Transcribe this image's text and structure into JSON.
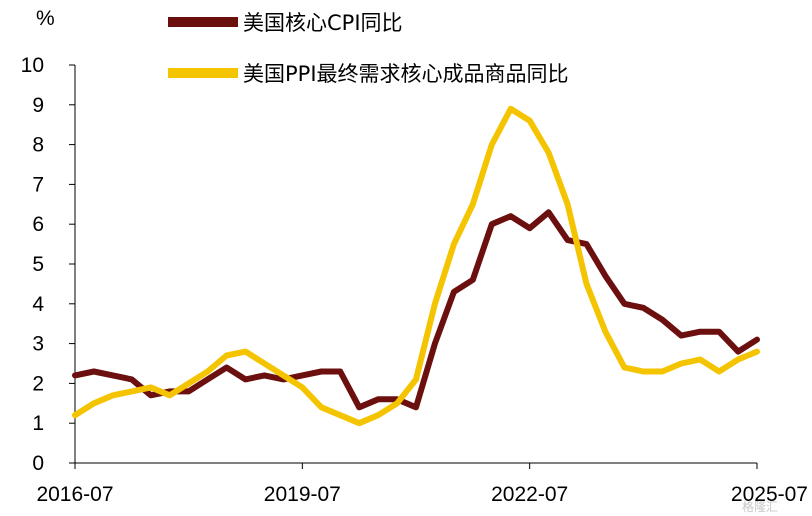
{
  "chart_data": {
    "type": "line",
    "title": "",
    "xlabel": "",
    "ylabel": "%",
    "ylim": [
      0,
      10
    ],
    "yticks": [
      "0",
      "1",
      "2",
      "3",
      "4",
      "5",
      "6",
      "7",
      "8",
      "9",
      "10"
    ],
    "xticks": [
      "2016-07",
      "2019-07",
      "2022-07",
      "2025-07"
    ],
    "x_start": "2016-07",
    "x_end": "2025-07",
    "legend_position": "top",
    "grid": false,
    "watermark": "格隆汇",
    "series": [
      {
        "name": "美国核心CPI同比",
        "color": "#6b0f0f",
        "points": [
          [
            "2016-07",
            2.2
          ],
          [
            "2016-10",
            2.3
          ],
          [
            "2017-01",
            2.2
          ],
          [
            "2017-04",
            2.1
          ],
          [
            "2017-07",
            1.7
          ],
          [
            "2017-10",
            1.8
          ],
          [
            "2018-01",
            1.8
          ],
          [
            "2018-04",
            2.1
          ],
          [
            "2018-07",
            2.4
          ],
          [
            "2018-10",
            2.1
          ],
          [
            "2019-01",
            2.2
          ],
          [
            "2019-04",
            2.1
          ],
          [
            "2019-07",
            2.2
          ],
          [
            "2019-10",
            2.3
          ],
          [
            "2020-01",
            2.3
          ],
          [
            "2020-04",
            1.4
          ],
          [
            "2020-07",
            1.6
          ],
          [
            "2020-10",
            1.6
          ],
          [
            "2021-01",
            1.4
          ],
          [
            "2021-04",
            3.0
          ],
          [
            "2021-07",
            4.3
          ],
          [
            "2021-10",
            4.6
          ],
          [
            "2022-01",
            6.0
          ],
          [
            "2022-04",
            6.2
          ],
          [
            "2022-07",
            5.9
          ],
          [
            "2022-10",
            6.3
          ],
          [
            "2023-01",
            5.6
          ],
          [
            "2023-04",
            5.5
          ],
          [
            "2023-07",
            4.7
          ],
          [
            "2023-10",
            4.0
          ],
          [
            "2024-01",
            3.9
          ],
          [
            "2024-04",
            3.6
          ],
          [
            "2024-07",
            3.2
          ],
          [
            "2024-10",
            3.3
          ],
          [
            "2025-01",
            3.3
          ],
          [
            "2025-04",
            2.8
          ],
          [
            "2025-07",
            3.1
          ]
        ]
      },
      {
        "name": "美国PPI最终需求核心成品商品同比",
        "color": "#f5c400",
        "points": [
          [
            "2016-07",
            1.2
          ],
          [
            "2016-10",
            1.5
          ],
          [
            "2017-01",
            1.7
          ],
          [
            "2017-04",
            1.8
          ],
          [
            "2017-07",
            1.9
          ],
          [
            "2017-10",
            1.7
          ],
          [
            "2018-01",
            2.0
          ],
          [
            "2018-04",
            2.3
          ],
          [
            "2018-07",
            2.7
          ],
          [
            "2018-10",
            2.8
          ],
          [
            "2019-01",
            2.5
          ],
          [
            "2019-04",
            2.2
          ],
          [
            "2019-07",
            1.9
          ],
          [
            "2019-10",
            1.4
          ],
          [
            "2020-01",
            1.2
          ],
          [
            "2020-04",
            1.0
          ],
          [
            "2020-07",
            1.2
          ],
          [
            "2020-10",
            1.5
          ],
          [
            "2021-01",
            2.1
          ],
          [
            "2021-04",
            4.0
          ],
          [
            "2021-07",
            5.5
          ],
          [
            "2021-10",
            6.5
          ],
          [
            "2022-01",
            8.0
          ],
          [
            "2022-04",
            8.9
          ],
          [
            "2022-07",
            8.6
          ],
          [
            "2022-10",
            7.8
          ],
          [
            "2023-01",
            6.5
          ],
          [
            "2023-04",
            4.5
          ],
          [
            "2023-07",
            3.3
          ],
          [
            "2023-10",
            2.4
          ],
          [
            "2024-01",
            2.3
          ],
          [
            "2024-04",
            2.3
          ],
          [
            "2024-07",
            2.5
          ],
          [
            "2024-10",
            2.6
          ],
          [
            "2025-01",
            2.3
          ],
          [
            "2025-04",
            2.6
          ],
          [
            "2025-07",
            2.8
          ]
        ]
      }
    ]
  }
}
